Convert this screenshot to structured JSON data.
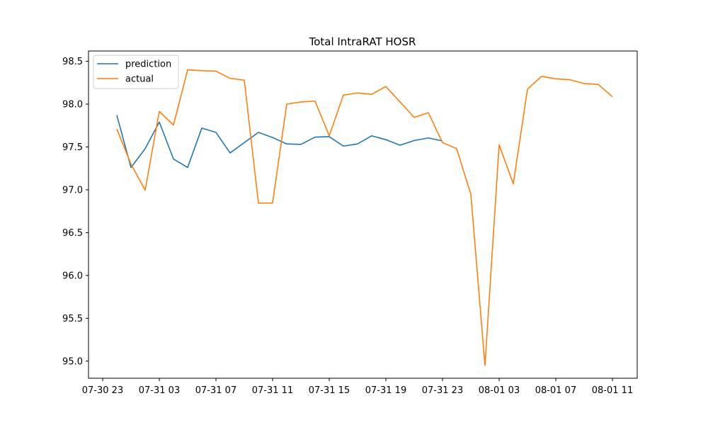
{
  "chart_data": {
    "type": "line",
    "title": "Total IntraRAT HOSR",
    "xlabel": "",
    "ylabel": "",
    "x": [
      "2024-07-31 00:00",
      "2024-07-31 01:00",
      "2024-07-31 02:00",
      "2024-07-31 03:00",
      "2024-07-31 04:00",
      "2024-07-31 05:00",
      "2024-07-31 06:00",
      "2024-07-31 07:00",
      "2024-07-31 08:00",
      "2024-07-31 09:00",
      "2024-07-31 10:00",
      "2024-07-31 11:00",
      "2024-07-31 12:00",
      "2024-07-31 13:00",
      "2024-07-31 14:00",
      "2024-07-31 15:00",
      "2024-07-31 16:00",
      "2024-07-31 17:00",
      "2024-07-31 18:00",
      "2024-07-31 19:00",
      "2024-07-31 20:00",
      "2024-07-31 21:00",
      "2024-07-31 22:00",
      "2024-07-31 23:00",
      "2024-08-01 00:00",
      "2024-08-01 01:00",
      "2024-08-01 02:00",
      "2024-08-01 03:00",
      "2024-08-01 04:00",
      "2024-08-01 05:00",
      "2024-08-01 06:00",
      "2024-08-01 07:00",
      "2024-08-01 08:00",
      "2024-08-01 09:00",
      "2024-08-01 10:00",
      "2024-08-01 11:00"
    ],
    "series": [
      {
        "name": "prediction",
        "color": "#1f77b4",
        "values": [
          97.87,
          97.26,
          97.48,
          97.79,
          97.36,
          97.26,
          97.72,
          97.67,
          97.43,
          97.55,
          97.67,
          97.61,
          97.535,
          97.53,
          97.615,
          97.62,
          97.51,
          97.535,
          97.63,
          97.585,
          97.52,
          97.575,
          97.605,
          97.57,
          null,
          null,
          null,
          null,
          null,
          null,
          null,
          null,
          null,
          null,
          null,
          null
        ]
      },
      {
        "name": "actual",
        "color": "#ff7f0e",
        "values": [
          97.71,
          97.3,
          96.995,
          97.915,
          97.755,
          98.4,
          98.39,
          98.385,
          98.3,
          98.28,
          96.845,
          96.845,
          98.0,
          98.025,
          98.035,
          97.63,
          98.105,
          98.13,
          98.115,
          98.205,
          98.025,
          97.845,
          97.9,
          97.55,
          97.48,
          96.95,
          94.95,
          97.525,
          97.07,
          98.175,
          98.325,
          98.295,
          98.285,
          98.24,
          98.23,
          98.085
        ]
      }
    ],
    "x_ticks": [
      "07-30 23",
      "07-31 03",
      "07-31 07",
      "07-31 11",
      "07-31 15",
      "07-31 19",
      "07-31 23",
      "08-01 03",
      "08-01 07",
      "08-01 11"
    ],
    "y_ticks": [
      "95.0",
      "95.5",
      "96.0",
      "96.5",
      "97.0",
      "97.5",
      "98.0",
      "98.5"
    ],
    "ylim": [
      94.8,
      98.62
    ],
    "xlim_hours_from_first_tick": [
      -1.0,
      37.75
    ],
    "grid": false,
    "legend_position": "top-left"
  }
}
